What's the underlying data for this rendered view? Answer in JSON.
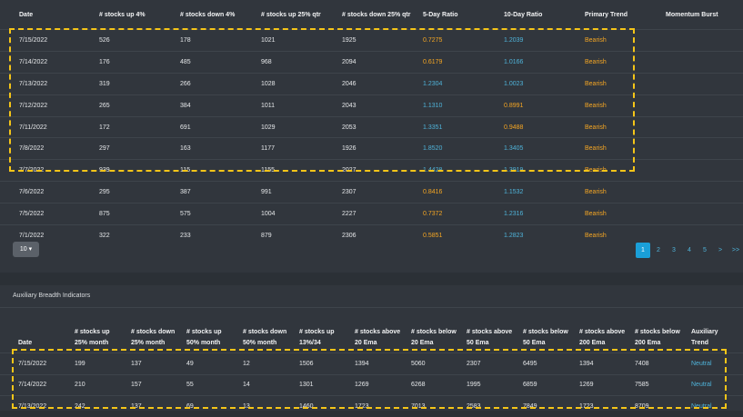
{
  "table1": {
    "headers": [
      "Date",
      "# stocks up 4%",
      "# stocks down 4%",
      "# stocks up 25% qtr",
      "# stocks down 25% qtr",
      "5-Day Ratio",
      "10-Day Ratio",
      "Primary Trend",
      "Momentum Burst"
    ],
    "rows": [
      {
        "date": "7/15/2022",
        "up4": "526",
        "down4": "178",
        "up25q": "1021",
        "down25q": "1925",
        "r5": "0.7275",
        "r5c": "orange",
        "r10": "1.2039",
        "r10c": "blue",
        "trend": "Bearish",
        "burst": ""
      },
      {
        "date": "7/14/2022",
        "up4": "176",
        "down4": "485",
        "up25q": "968",
        "down25q": "2094",
        "r5": "0.6179",
        "r5c": "orange",
        "r10": "1.0166",
        "r10c": "blue",
        "trend": "Bearish",
        "burst": ""
      },
      {
        "date": "7/13/2022",
        "up4": "319",
        "down4": "266",
        "up25q": "1028",
        "down25q": "2046",
        "r5": "1.2304",
        "r5c": "blue",
        "r10": "1.0023",
        "r10c": "blue",
        "trend": "Bearish",
        "burst": ""
      },
      {
        "date": "7/12/2022",
        "up4": "265",
        "down4": "384",
        "up25q": "1011",
        "down25q": "2043",
        "r5": "1.1310",
        "r5c": "blue",
        "r10": "0.8991",
        "r10c": "orange",
        "trend": "Bearish",
        "burst": ""
      },
      {
        "date": "7/11/2022",
        "up4": "172",
        "down4": "691",
        "up25q": "1029",
        "down25q": "2053",
        "r5": "1.3351",
        "r5c": "blue",
        "r10": "0.9488",
        "r10c": "orange",
        "trend": "Bearish",
        "burst": ""
      },
      {
        "date": "7/8/2022",
        "up4": "297",
        "down4": "163",
        "up25q": "1177",
        "down25q": "1926",
        "r5": "1.8520",
        "r5c": "blue",
        "r10": "1.3405",
        "r10c": "blue",
        "trend": "Bearish",
        "burst": ""
      },
      {
        "date": "7/7/2022",
        "up4": "939",
        "down4": "115",
        "up25q": "1155",
        "down25q": "2027",
        "r5": "1.4428",
        "r5c": "blue",
        "r10": "1.3919",
        "r10c": "blue",
        "trend": "Bearish",
        "burst": ""
      },
      {
        "date": "7/6/2022",
        "up4": "295",
        "down4": "387",
        "up25q": "991",
        "down25q": "2307",
        "r5": "0.8416",
        "r5c": "orange",
        "r10": "1.1532",
        "r10c": "blue",
        "trend": "Bearish",
        "burst": ""
      },
      {
        "date": "7/5/2022",
        "up4": "875",
        "down4": "575",
        "up25q": "1004",
        "down25q": "2227",
        "r5": "0.7372",
        "r5c": "orange",
        "r10": "1.2316",
        "r10c": "blue",
        "trend": "Bearish",
        "burst": ""
      },
      {
        "date": "7/1/2022",
        "up4": "322",
        "down4": "233",
        "up25q": "879",
        "down25q": "2306",
        "r5": "0.5851",
        "r5c": "orange",
        "r10": "1.2823",
        "r10c": "blue",
        "trend": "Bearish",
        "burst": ""
      }
    ]
  },
  "page_size": {
    "label": "10",
    "icon": "caret-down-icon"
  },
  "pagination": {
    "pages": [
      "1",
      "2",
      "3",
      "4",
      "5"
    ],
    "next": ">",
    "last": ">>",
    "active": "1"
  },
  "section2": {
    "title": "Auxiliary Breadth Indicators"
  },
  "table2": {
    "headers": [
      [
        "Date"
      ],
      [
        "# stocks up",
        "25% month"
      ],
      [
        "# stocks down",
        "25% month"
      ],
      [
        "# stocks up",
        "50% month"
      ],
      [
        "# stocks down",
        "50% month"
      ],
      [
        "# stocks up",
        "13%/34"
      ],
      [
        "# stocks above",
        "20 Ema"
      ],
      [
        "# stocks below",
        "20 Ema"
      ],
      [
        "# stocks above",
        "50 Ema"
      ],
      [
        "# stocks below",
        "50 Ema"
      ],
      [
        "# stocks above",
        "200 Ema"
      ],
      [
        "# stocks below",
        "200 Ema"
      ],
      [
        "Auxiliary",
        "Trend"
      ]
    ],
    "rows": [
      [
        "7/15/2022",
        "199",
        "137",
        "49",
        "12",
        "1506",
        "1394",
        "5060",
        "2307",
        "6495",
        "1394",
        "7408",
        "Neutral"
      ],
      [
        "7/14/2022",
        "210",
        "157",
        "55",
        "14",
        "1301",
        "1269",
        "6268",
        "1995",
        "6859",
        "1269",
        "7585",
        "Neutral"
      ],
      [
        "7/13/2022",
        "242",
        "137",
        "69",
        "13",
        "1460",
        "1723",
        "7013",
        "2583",
        "7849",
        "1723",
        "8709",
        "Neutral"
      ]
    ]
  },
  "colors": {
    "orange": "#f5a623",
    "blue": "#4fb3d9",
    "highlight": "#f5c518",
    "panel": "#31363d"
  }
}
